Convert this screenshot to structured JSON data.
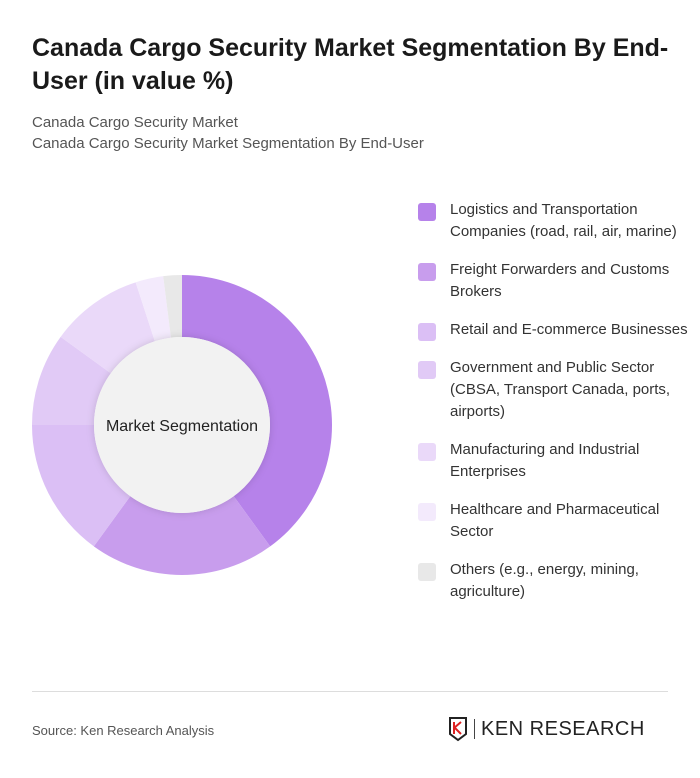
{
  "title": "Canada Cargo Security Market Segmentation By End-User (in value %)",
  "subtitle1": "Canada Cargo Security Market",
  "subtitle2": "Canada Cargo Security Market Segmentation By End-User",
  "source": "Source: Ken Research Analysis",
  "logo_text": "KEN RESEARCH",
  "chart_data": {
    "type": "pie",
    "donut": true,
    "center_label": "Market Segmentation",
    "categories": [
      "Logistics and Transportation Companies (road, rail, air, marine)",
      "Freight Forwarders and Customs Brokers",
      "Retail and E-commerce Businesses",
      "Government and Public Sector (CBSA, Transport Canada, ports, airports)",
      "Manufacturing and Industrial Enterprises",
      "Healthcare and Pharmaceutical Sector",
      "Others (e.g., energy, mining, agriculture)"
    ],
    "values": [
      40,
      20,
      15,
      10,
      10,
      3,
      2
    ],
    "colors": [
      "#b682ea",
      "#c89ded",
      "#dbbff5",
      "#e1caf6",
      "#ead9f9",
      "#f3eafc",
      "#e8e8e8"
    ],
    "legend_position": "right"
  }
}
